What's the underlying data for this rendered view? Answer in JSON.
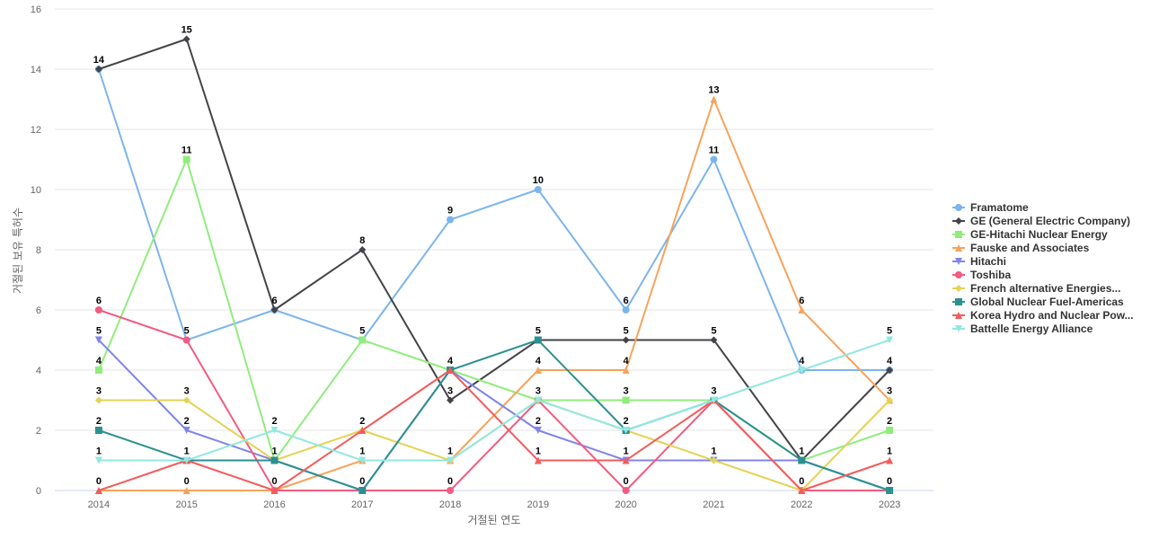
{
  "chart_data": {
    "type": "line",
    "xlabel": "거절된 연도",
    "ylabel": "거절된 보유 특허수",
    "ylim": [
      0,
      16
    ],
    "yticks": [
      0,
      2,
      4,
      6,
      8,
      10,
      12,
      14,
      16
    ],
    "categories": [
      "2014",
      "2015",
      "2016",
      "2017",
      "2018",
      "2019",
      "2020",
      "2021",
      "2022",
      "2023"
    ],
    "grid": true,
    "legend_position": "right",
    "series": [
      {
        "name": "Framatome",
        "color": "#7cb5ec",
        "marker": "circle",
        "values": [
          14,
          5,
          6,
          5,
          9,
          10,
          6,
          11,
          4,
          4
        ]
      },
      {
        "name": "GE (General Electric Company)",
        "color": "#434348",
        "marker": "diamond",
        "values": [
          14,
          15,
          6,
          8,
          3,
          5,
          5,
          5,
          1,
          4
        ]
      },
      {
        "name": "GE-Hitachi Nuclear Energy",
        "color": "#90ed7d",
        "marker": "square",
        "values": [
          4,
          11,
          1,
          5,
          4,
          3,
          3,
          3,
          1,
          2
        ]
      },
      {
        "name": "Fauske and Associates",
        "color": "#f7a35c",
        "marker": "triangle",
        "values": [
          0,
          0,
          0,
          1,
          1,
          4,
          4,
          13,
          6,
          3
        ]
      },
      {
        "name": "Hitachi",
        "color": "#8085e9",
        "marker": "triangle-down",
        "values": [
          5,
          2,
          1,
          0,
          4,
          2,
          1,
          1,
          1,
          0
        ]
      },
      {
        "name": "Toshiba",
        "color": "#f15c80",
        "marker": "circle",
        "values": [
          6,
          5,
          0,
          0,
          0,
          3,
          0,
          3,
          0,
          0
        ]
      },
      {
        "name": "French alternative Energies...",
        "color": "#e4d354",
        "marker": "diamond",
        "values": [
          3,
          3,
          1,
          2,
          1,
          3,
          2,
          1,
          0,
          3
        ]
      },
      {
        "name": "Global Nuclear Fuel-Americas",
        "color": "#2b908f",
        "marker": "square",
        "values": [
          2,
          1,
          1,
          0,
          4,
          5,
          2,
          3,
          1,
          0
        ]
      },
      {
        "name": "Korea Hydro and Nuclear Pow...",
        "color": "#f45b5b",
        "marker": "triangle",
        "values": [
          0,
          1,
          0,
          2,
          4,
          1,
          1,
          3,
          0,
          1
        ]
      },
      {
        "name": "Battelle Energy Alliance",
        "color": "#91e8e1",
        "marker": "triangle-down",
        "values": [
          1,
          1,
          2,
          1,
          1,
          3,
          2,
          3,
          4,
          5
        ]
      }
    ],
    "data_labels": [
      {
        "x": "2014",
        "y": 14,
        "text": "14"
      },
      {
        "x": "2014",
        "y": 6,
        "text": "6"
      },
      {
        "x": "2014",
        "y": 5,
        "text": "5"
      },
      {
        "x": "2014",
        "y": 4,
        "text": "4"
      },
      {
        "x": "2014",
        "y": 3,
        "text": "3"
      },
      {
        "x": "2014",
        "y": 2,
        "text": "2"
      },
      {
        "x": "2014",
        "y": 1,
        "text": "1"
      },
      {
        "x": "2014",
        "y": 0,
        "text": "0"
      },
      {
        "x": "2015",
        "y": 15,
        "text": "15"
      },
      {
        "x": "2015",
        "y": 11,
        "text": "11"
      },
      {
        "x": "2015",
        "y": 5,
        "text": "5"
      },
      {
        "x": "2015",
        "y": 3,
        "text": "3"
      },
      {
        "x": "2015",
        "y": 2,
        "text": "2"
      },
      {
        "x": "2015",
        "y": 1,
        "text": "1"
      },
      {
        "x": "2015",
        "y": 0,
        "text": "0"
      },
      {
        "x": "2016",
        "y": 6,
        "text": "6"
      },
      {
        "x": "2016",
        "y": 2,
        "text": "2"
      },
      {
        "x": "2016",
        "y": 1,
        "text": "1"
      },
      {
        "x": "2016",
        "y": 0,
        "text": "0"
      },
      {
        "x": "2017",
        "y": 8,
        "text": "8"
      },
      {
        "x": "2017",
        "y": 5,
        "text": "5"
      },
      {
        "x": "2017",
        "y": 2,
        "text": "2"
      },
      {
        "x": "2017",
        "y": 1,
        "text": "1"
      },
      {
        "x": "2017",
        "y": 0,
        "text": "0"
      },
      {
        "x": "2018",
        "y": 9,
        "text": "9"
      },
      {
        "x": "2018",
        "y": 4,
        "text": "4"
      },
      {
        "x": "2018",
        "y": 3,
        "text": "3"
      },
      {
        "x": "2018",
        "y": 1,
        "text": "1"
      },
      {
        "x": "2018",
        "y": 0,
        "text": "0"
      },
      {
        "x": "2019",
        "y": 10,
        "text": "10"
      },
      {
        "x": "2019",
        "y": 5,
        "text": "5"
      },
      {
        "x": "2019",
        "y": 4,
        "text": "4"
      },
      {
        "x": "2019",
        "y": 3,
        "text": "3"
      },
      {
        "x": "2019",
        "y": 2,
        "text": "2"
      },
      {
        "x": "2019",
        "y": 1,
        "text": "1"
      },
      {
        "x": "2020",
        "y": 6,
        "text": "6"
      },
      {
        "x": "2020",
        "y": 5,
        "text": "5"
      },
      {
        "x": "2020",
        "y": 4,
        "text": "4"
      },
      {
        "x": "2020",
        "y": 3,
        "text": "3"
      },
      {
        "x": "2020",
        "y": 2,
        "text": "2"
      },
      {
        "x": "2020",
        "y": 1,
        "text": "1"
      },
      {
        "x": "2020",
        "y": 0,
        "text": "0"
      },
      {
        "x": "2021",
        "y": 13,
        "text": "13"
      },
      {
        "x": "2021",
        "y": 11,
        "text": "11"
      },
      {
        "x": "2021",
        "y": 5,
        "text": "5"
      },
      {
        "x": "2021",
        "y": 3,
        "text": "3"
      },
      {
        "x": "2021",
        "y": 1,
        "text": "1"
      },
      {
        "x": "2022",
        "y": 6,
        "text": "6"
      },
      {
        "x": "2022",
        "y": 4,
        "text": "4"
      },
      {
        "x": "2022",
        "y": 1,
        "text": "1"
      },
      {
        "x": "2022",
        "y": 0,
        "text": "0"
      },
      {
        "x": "2023",
        "y": 5,
        "text": "5"
      },
      {
        "x": "2023",
        "y": 4,
        "text": "4"
      },
      {
        "x": "2023",
        "y": 3,
        "text": "3"
      },
      {
        "x": "2023",
        "y": 2,
        "text": "2"
      },
      {
        "x": "2023",
        "y": 1,
        "text": "1"
      },
      {
        "x": "2023",
        "y": 0,
        "text": "0"
      }
    ]
  }
}
